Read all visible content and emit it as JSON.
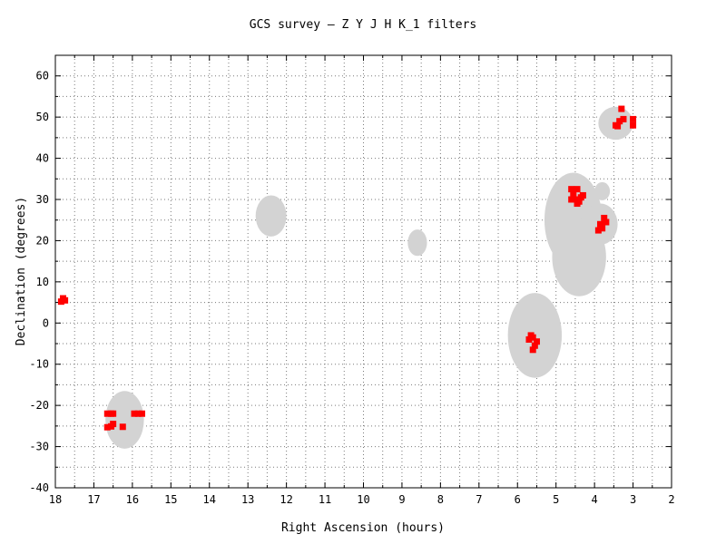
{
  "chart_data": {
    "type": "scatter",
    "title": "GCS survey — Z Y J H K_1  filters",
    "xlabel": "Right Ascension (hours)",
    "ylabel": "Declination (degrees)",
    "xlim": [
      18,
      2
    ],
    "ylim": [
      -40,
      65
    ],
    "x_ticks": [
      18,
      17,
      16,
      15,
      14,
      13,
      12,
      11,
      10,
      9,
      8,
      7,
      6,
      5,
      4,
      3,
      2
    ],
    "y_ticks": [
      -40,
      -30,
      -20,
      -10,
      0,
      10,
      20,
      30,
      40,
      50,
      60
    ],
    "grid": true,
    "colors": {
      "observed": "#ff0000",
      "planned": "#d3d3d3"
    },
    "regions": [
      {
        "ra": 16.2,
        "dec": -23.5,
        "ra_radius": 0.5,
        "dec_radius": 7
      },
      {
        "ra": 12.4,
        "dec": 26,
        "ra_radius": 0.4,
        "dec_radius": 5
      },
      {
        "ra": 8.6,
        "dec": 19.5,
        "ra_radius": 0.25,
        "dec_radius": 3.2
      },
      {
        "ra": 5.55,
        "dec": -3,
        "ra_radius": 0.7,
        "dec_radius": 10.3
      },
      {
        "ra": 4.55,
        "dec": 25,
        "ra_radius": 0.75,
        "dec_radius": 11.5
      },
      {
        "ra": 4.4,
        "dec": 16,
        "ra_radius": 0.7,
        "dec_radius": 9.5
      },
      {
        "ra": 3.85,
        "dec": 24,
        "ra_radius": 0.45,
        "dec_radius": 5
      },
      {
        "ra": 3.8,
        "dec": 32,
        "ra_radius": 0.2,
        "dec_radius": 2.2
      },
      {
        "ra": 3.45,
        "dec": 48.5,
        "ra_radius": 0.45,
        "dec_radius": 4
      }
    ],
    "observed_points": [
      [
        17.8,
        6
      ],
      [
        17.75,
        5.5
      ],
      [
        17.85,
        5.2
      ],
      [
        17.8,
        5.8
      ],
      [
        16.65,
        -22
      ],
      [
        16.55,
        -22
      ],
      [
        16.5,
        -22
      ],
      [
        16.65,
        -25.3
      ],
      [
        16.55,
        -25.1
      ],
      [
        16.5,
        -24.5
      ],
      [
        16.25,
        -25.2
      ],
      [
        15.95,
        -22
      ],
      [
        15.85,
        -22
      ],
      [
        15.75,
        -22
      ],
      [
        5.7,
        -4
      ],
      [
        5.6,
        -3.5
      ],
      [
        5.55,
        -5.5
      ],
      [
        5.65,
        -3
      ],
      [
        5.6,
        -6.5
      ],
      [
        5.5,
        -4.5
      ],
      [
        4.6,
        32.5
      ],
      [
        4.55,
        31
      ],
      [
        4.45,
        32.5
      ],
      [
        4.5,
        30
      ],
      [
        4.35,
        30.5
      ],
      [
        4.4,
        29.5
      ],
      [
        4.6,
        30
      ],
      [
        4.3,
        31
      ],
      [
        4.45,
        29
      ],
      [
        3.85,
        24
      ],
      [
        3.75,
        25.5
      ],
      [
        3.8,
        23
      ],
      [
        3.9,
        22.5
      ],
      [
        3.7,
        24.5
      ],
      [
        3.45,
        48
      ],
      [
        3.35,
        49
      ],
      [
        3.4,
        47.8
      ],
      [
        3.25,
        49.5
      ],
      [
        3.3,
        52
      ],
      [
        3.0,
        49.5
      ],
      [
        3.0,
        48
      ]
    ]
  }
}
